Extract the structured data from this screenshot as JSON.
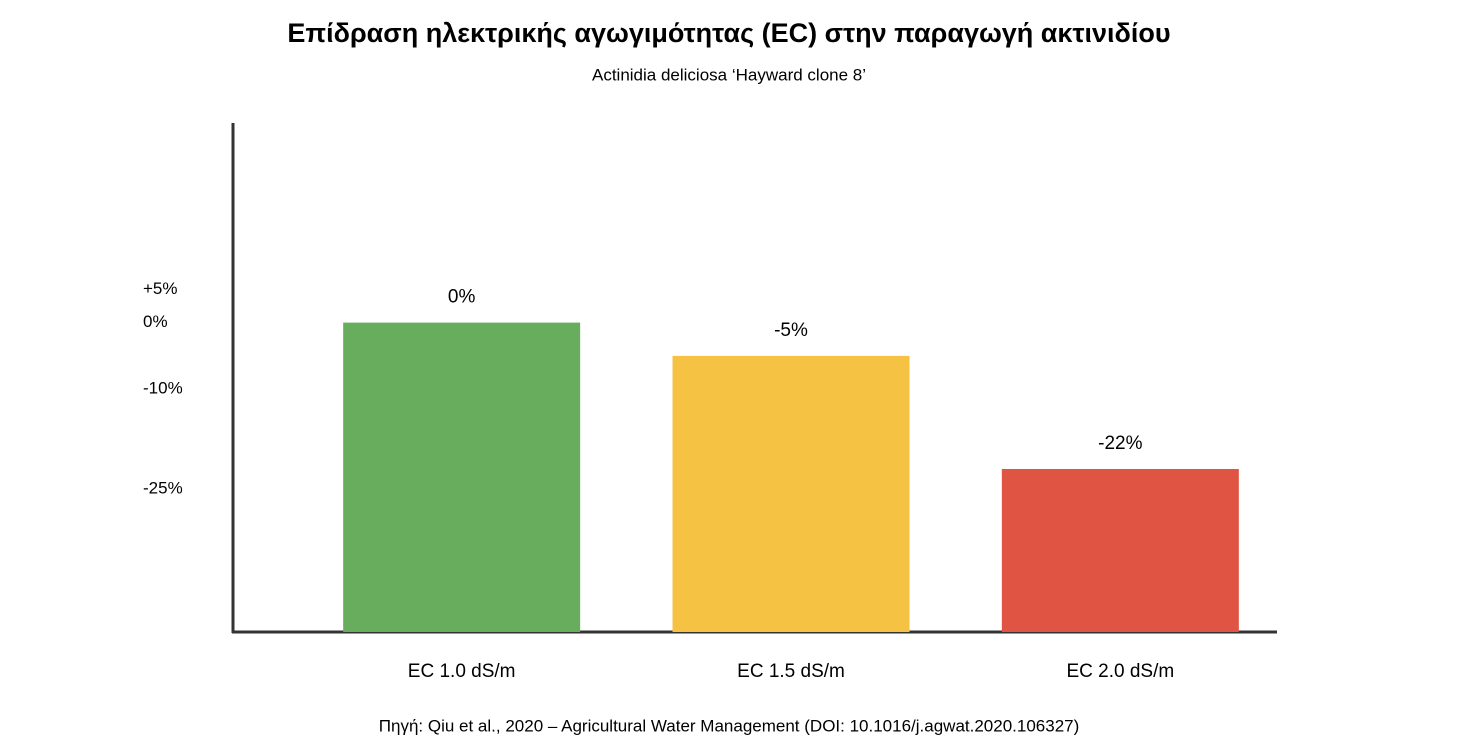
{
  "chart_data": {
    "type": "bar",
    "title": "Επίδραση ηλεκτρικής αγωγιμότητας (EC) στην παραγωγή ακτινιδίου",
    "subtitle": "Actinidia deliciosa ‘Hayward clone 8’",
    "categories": [
      "EC 1.0 dS/m",
      "EC 1.5 dS/m",
      "EC 2.0 dS/m"
    ],
    "values": [
      0,
      -5,
      -22
    ],
    "value_labels": [
      "0%",
      "-5%",
      "-22%"
    ],
    "colors": [
      "#68ad5e",
      "#f5c244",
      "#e05444"
    ],
    "ylim": [
      -46.5,
      30
    ],
    "yticks": [
      {
        "value": 5,
        "label": "+5%"
      },
      {
        "value": 0,
        "label": "0%"
      },
      {
        "value": -10,
        "label": "-10%"
      },
      {
        "value": -25,
        "label": "-25%"
      }
    ],
    "grid": false,
    "source": "Πηγή: Qiu et al., 2020 – Agricultural Water Management (DOI: 10.1016/j.agwat.2020.106327)"
  }
}
